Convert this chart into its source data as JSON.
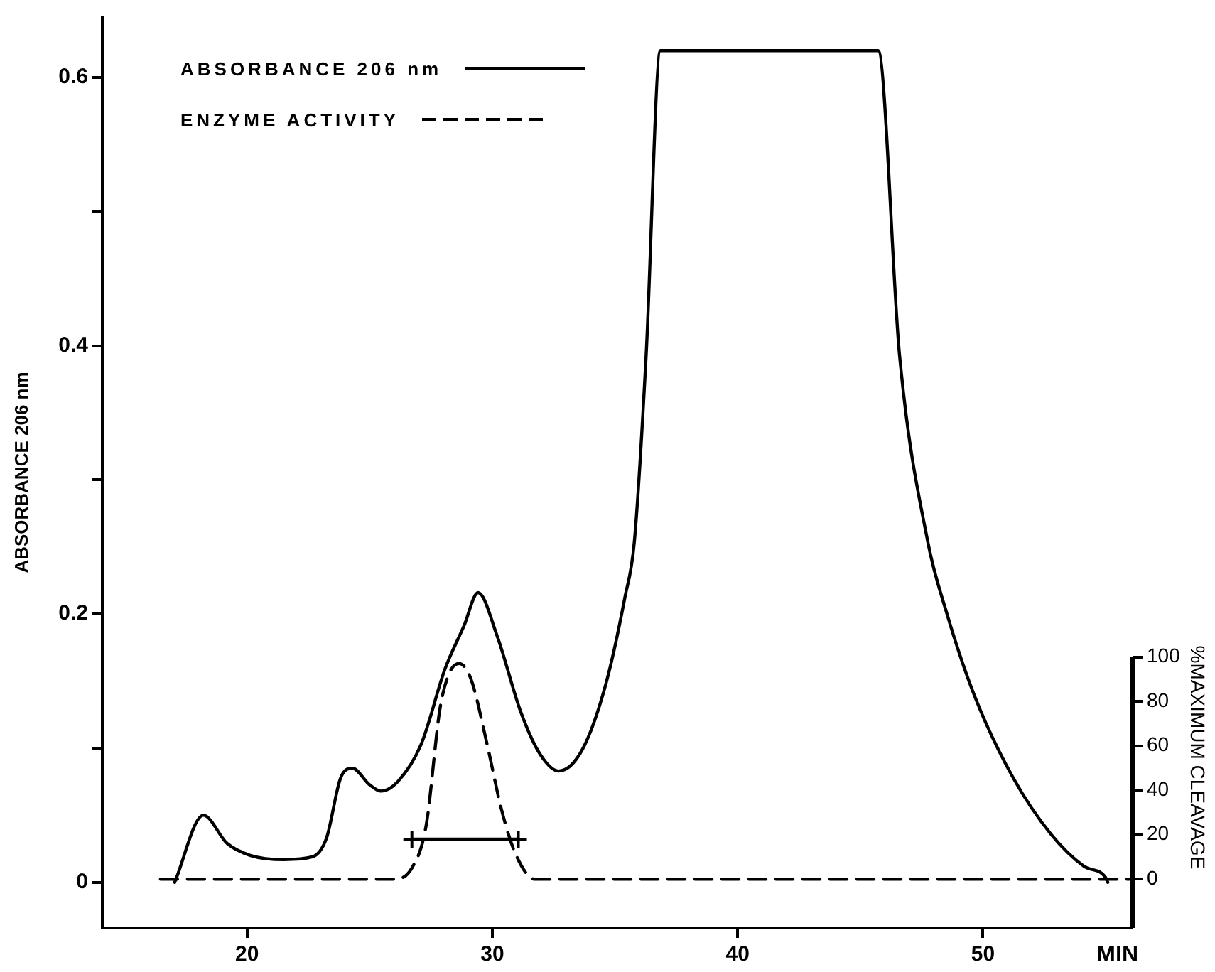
{
  "chart_data": {
    "type": "line",
    "xlabel": "MIN",
    "ylabel": "ABSORBANCE 206 nm",
    "y2label": "%MAXIMUM CLEAVAGE",
    "xlim": [
      14.1,
      56.1
    ],
    "xticks": [
      20,
      30,
      40,
      50
    ],
    "ylim": [
      -0.034,
      0.645
    ],
    "yticks": [
      0,
      {
        "value": 0.1,
        "label": null
      },
      0.2,
      {
        "value": 0.3,
        "label": null
      },
      0.4,
      {
        "value": 0.5,
        "label": null
      },
      0.6
    ],
    "y2lim": [
      -22,
      388
    ],
    "y2ticks": [
      0,
      20,
      40,
      60,
      80,
      100
    ],
    "legend": "top left",
    "grid": false,
    "series": [
      {
        "name": "ABSORBANCE 206 nm",
        "color": "#000000",
        "line_style": "solid",
        "x": [
          17.05,
          18.22,
          19.19,
          20.15,
          21.5,
          22.66,
          23.24,
          23.82,
          24.3,
          24.98,
          25.46,
          26.14,
          27.1,
          28.07,
          28.84,
          29.42,
          30.19,
          31.16,
          31.93,
          32.7,
          33.67,
          34.63,
          35.4,
          35.79,
          36.27,
          36.85,
          45.73,
          46.6,
          47.75,
          48.52,
          49.68,
          51.23,
          52.77,
          54.12,
          54.99,
          55.09
        ],
        "values": [
          0,
          0.05,
          0.029,
          0.02,
          0.017,
          0.019,
          0.033,
          0.078,
          0.085,
          0.073,
          0.068,
          0.075,
          0.103,
          0.159,
          0.191,
          0.216,
          0.184,
          0.127,
          0.096,
          0.083,
          0.099,
          0.148,
          0.212,
          0.254,
          0.393,
          0.62,
          0.62,
          0.393,
          0.254,
          0.201,
          0.138,
          0.078,
          0.036,
          0.012,
          0.004,
          0
        ]
      },
      {
        "name": "ENZYME ACTIVITY",
        "color": "#000000",
        "line_style": "dashed",
        "axis": "y2",
        "x": [
          16.47,
          25.95,
          26.72,
          27.3,
          27.87,
          28.26,
          28.65,
          29.13,
          29.8,
          30.38,
          30.96,
          31.73,
          56.06
        ],
        "values": [
          0,
          0,
          5,
          24,
          77,
          93,
          97,
          90,
          60,
          31,
          11,
          0,
          0
        ]
      },
      {
        "type": "line",
        "line_style": "solid",
        "marker": "cross",
        "color": "#000000",
        "axis": "y2",
        "x": [
          26.72,
          31.06
        ],
        "values": [
          18,
          18
        ]
      }
    ]
  }
}
